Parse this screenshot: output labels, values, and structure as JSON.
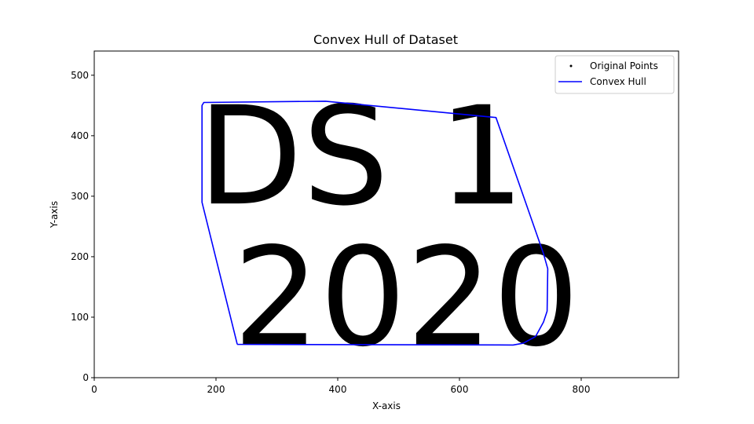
{
  "chart_data": {
    "type": "scatter",
    "title": "Convex Hull of Dataset",
    "xlabel": "X-axis",
    "ylabel": "Y-axis",
    "xlim": [
      0,
      960
    ],
    "ylim": [
      0,
      540
    ],
    "xticks": [
      0,
      200,
      400,
      600,
      800
    ],
    "yticks": [
      0,
      100,
      200,
      300,
      400,
      500
    ],
    "grid": false,
    "legend_position": "top-right",
    "point_color": "#000000",
    "hull_color": "#0000ff",
    "points_text": [
      {
        "text": "DS",
        "x": 170,
        "y": 288,
        "size": 225
      },
      {
        "text": "1",
        "x": 565,
        "y": 288,
        "size": 225
      },
      {
        "text": "2020",
        "x": 228,
        "y": 55,
        "size": 225
      }
    ],
    "series": [
      {
        "name": "Original Points",
        "kind": "points"
      },
      {
        "name": "Convex Hull",
        "kind": "line",
        "x": [
          235,
          177,
          177,
          180,
          380,
          660,
          738,
          745,
          744,
          738,
          725,
          705,
          688,
          235
        ],
        "y": [
          55,
          290,
          450,
          455,
          457,
          430,
          205,
          180,
          110,
          92,
          68,
          57,
          54,
          55
        ]
      }
    ]
  }
}
